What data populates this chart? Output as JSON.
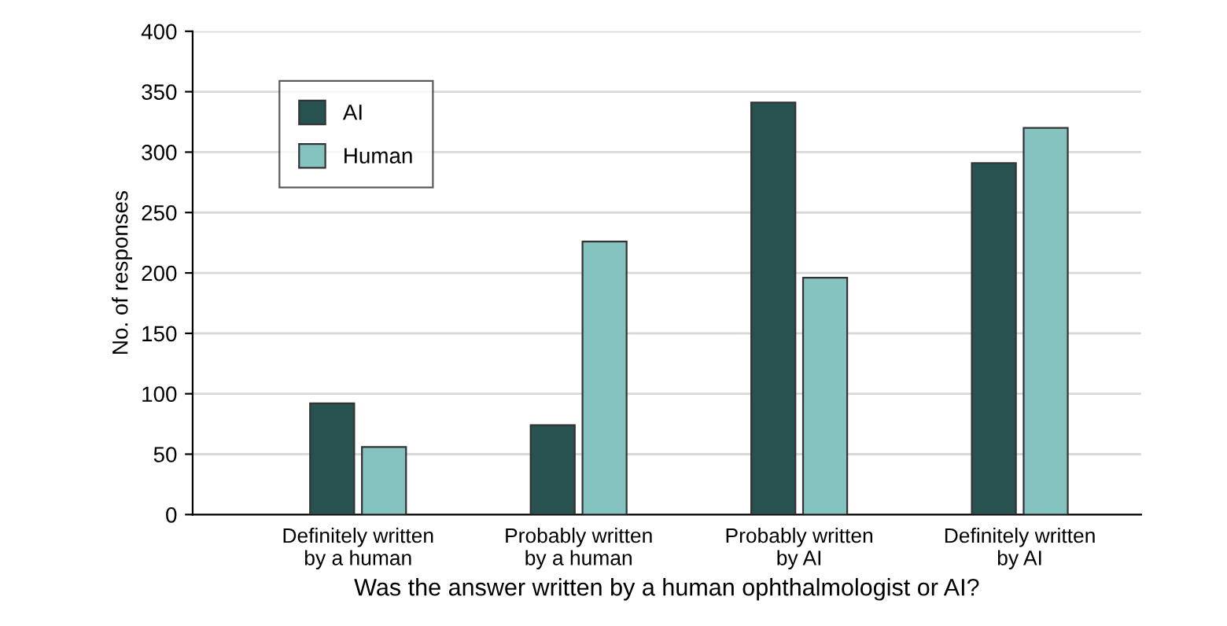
{
  "chart_data": {
    "type": "bar",
    "xlabel": "Was the answer written by a human ophthalmologist or AI?",
    "ylabel": "No. of responses",
    "categories": [
      "Definitely written\nby a human",
      "Probably written\nby a human",
      "Probably written\nby AI",
      "Definitely written\nby AI"
    ],
    "series": [
      {
        "name": "AI",
        "color": "#285250",
        "values": [
          92,
          74,
          341,
          291
        ]
      },
      {
        "name": "Human",
        "color": "#85c3c1",
        "values": [
          56,
          226,
          196,
          320
        ]
      }
    ],
    "ylim": [
      0,
      400
    ],
    "yticks": [
      0,
      50,
      100,
      150,
      200,
      250,
      300,
      350,
      400
    ],
    "grid": "y",
    "legend": "top left"
  }
}
